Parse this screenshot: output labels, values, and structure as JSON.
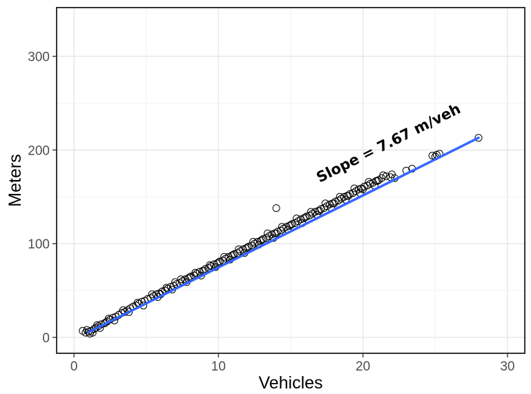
{
  "chart_data": {
    "type": "scatter",
    "title": "",
    "xlabel": "Vehicles",
    "ylabel": "Meters",
    "xlim": [
      -1.2,
      31.2
    ],
    "ylim": [
      -17,
      352
    ],
    "x_ticks": [
      0,
      10,
      20,
      30
    ],
    "y_ticks": [
      0,
      100,
      200,
      300
    ],
    "x_tick_labels": [
      "0",
      "10",
      "20",
      "30"
    ],
    "y_tick_labels": [
      "0",
      "100",
      "200",
      "300"
    ],
    "x_minor": [
      5,
      15,
      25
    ],
    "y_minor": [
      50,
      150,
      250
    ],
    "grid": true,
    "trend": {
      "slope": 7.67,
      "x_start": 1.0,
      "x_end": 28.0,
      "y_start": 5.5,
      "y_end": 213,
      "color": "#3366FF",
      "label": "Slope = 7.67 m/veh",
      "label_x": 17.0,
      "label_y": 165
    },
    "points": [
      [
        0.6,
        7
      ],
      [
        0.8,
        5
      ],
      [
        0.9,
        8
      ],
      [
        1.0,
        6
      ],
      [
        1.1,
        4
      ],
      [
        1.2,
        7
      ],
      [
        1.3,
        5
      ],
      [
        1.4,
        9
      ],
      [
        1.5,
        10
      ],
      [
        1.7,
        12
      ],
      [
        1.9,
        14
      ],
      [
        2.1,
        15
      ],
      [
        2.3,
        17
      ],
      [
        2.5,
        19
      ],
      [
        2.7,
        21
      ],
      [
        2.9,
        22
      ],
      [
        3.1,
        24
      ],
      [
        3.3,
        26
      ],
      [
        3.5,
        27
      ],
      [
        3.7,
        29
      ],
      [
        3.9,
        31
      ],
      [
        4.1,
        33
      ],
      [
        4.3,
        34
      ],
      [
        4.5,
        36
      ],
      [
        4.7,
        38
      ],
      [
        4.9,
        39
      ],
      [
        5.1,
        41
      ],
      [
        5.3,
        42
      ],
      [
        5.5,
        44
      ],
      [
        5.7,
        46
      ],
      [
        5.9,
        47
      ],
      [
        6.1,
        49
      ],
      [
        6.3,
        50
      ],
      [
        6.5,
        52
      ],
      [
        6.7,
        54
      ],
      [
        6.9,
        55
      ],
      [
        7.1,
        57
      ],
      [
        7.3,
        58
      ],
      [
        7.5,
        60
      ],
      [
        7.7,
        62
      ],
      [
        7.9,
        63
      ],
      [
        8.1,
        65
      ],
      [
        8.3,
        66
      ],
      [
        8.5,
        68
      ],
      [
        8.7,
        70
      ],
      [
        8.9,
        71
      ],
      [
        9.1,
        73
      ],
      [
        9.3,
        74
      ],
      [
        9.5,
        76
      ],
      [
        9.7,
        78
      ],
      [
        9.9,
        79
      ],
      [
        10.1,
        81
      ],
      [
        10.3,
        82
      ],
      [
        10.5,
        84
      ],
      [
        10.7,
        86
      ],
      [
        10.9,
        87
      ],
      [
        11.1,
        89
      ],
      [
        11.3,
        90
      ],
      [
        11.5,
        92
      ],
      [
        11.7,
        94
      ],
      [
        11.9,
        95
      ],
      [
        12.1,
        97
      ],
      [
        12.3,
        98
      ],
      [
        12.5,
        100
      ],
      [
        12.7,
        102
      ],
      [
        12.9,
        103
      ],
      [
        13.1,
        105
      ],
      [
        13.3,
        106
      ],
      [
        13.5,
        108
      ],
      [
        13.7,
        110
      ],
      [
        13.9,
        111
      ],
      [
        14.1,
        113
      ],
      [
        14.3,
        114
      ],
      [
        14.5,
        116
      ],
      [
        14.7,
        118
      ],
      [
        14.9,
        119
      ],
      [
        15.1,
        121
      ],
      [
        15.3,
        122
      ],
      [
        15.5,
        124
      ],
      [
        15.7,
        126
      ],
      [
        15.9,
        127
      ],
      [
        16.1,
        129
      ],
      [
        16.3,
        130
      ],
      [
        16.5,
        132
      ],
      [
        16.7,
        134
      ],
      [
        16.9,
        135
      ],
      [
        17.1,
        137
      ],
      [
        17.3,
        138
      ],
      [
        17.5,
        140
      ],
      [
        17.7,
        142
      ],
      [
        17.9,
        143
      ],
      [
        18.1,
        145
      ],
      [
        18.3,
        146
      ],
      [
        18.5,
        148
      ],
      [
        18.7,
        150
      ],
      [
        18.9,
        151
      ],
      [
        19.1,
        153
      ],
      [
        19.3,
        154
      ],
      [
        19.5,
        156
      ],
      [
        19.7,
        158
      ],
      [
        19.9,
        159
      ],
      [
        20.1,
        161
      ],
      [
        20.3,
        162
      ],
      [
        20.5,
        164
      ],
      [
        20.7,
        165
      ],
      [
        20.9,
        167
      ],
      [
        21.1,
        168
      ],
      [
        21.3,
        170
      ],
      [
        21.6,
        172
      ],
      [
        21.9,
        171
      ],
      [
        22.2,
        170
      ],
      [
        1.6,
        13
      ],
      [
        2.4,
        20
      ],
      [
        3.4,
        29
      ],
      [
        4.4,
        37
      ],
      [
        5.4,
        46
      ],
      [
        6.4,
        53
      ],
      [
        7.4,
        62
      ],
      [
        8.4,
        69
      ],
      [
        9.4,
        77
      ],
      [
        10.4,
        86
      ],
      [
        11.4,
        94
      ],
      [
        12.4,
        102
      ],
      [
        13.4,
        111
      ],
      [
        14.4,
        118
      ],
      [
        15.4,
        127
      ],
      [
        16.4,
        134
      ],
      [
        17.4,
        143
      ],
      [
        18.4,
        150
      ],
      [
        19.4,
        159
      ],
      [
        20.4,
        166
      ],
      [
        21.4,
        173
      ],
      [
        1.8,
        10
      ],
      [
        2.8,
        18
      ],
      [
        3.8,
        27
      ],
      [
        4.8,
        34
      ],
      [
        5.8,
        43
      ],
      [
        6.8,
        51
      ],
      [
        7.8,
        59
      ],
      [
        8.8,
        66
      ],
      [
        9.8,
        75
      ],
      [
        10.8,
        83
      ],
      [
        11.8,
        90
      ],
      [
        12.8,
        99
      ],
      [
        13.8,
        106
      ],
      [
        14.8,
        115
      ],
      [
        15.8,
        122
      ],
      [
        16.8,
        131
      ],
      [
        17.8,
        138
      ],
      [
        18.8,
        147
      ],
      [
        19.8,
        154
      ],
      [
        20.8,
        162
      ],
      [
        2.2,
        16
      ],
      [
        6.0,
        46
      ],
      [
        7.0,
        59
      ],
      [
        8.0,
        64
      ],
      [
        9.0,
        71
      ],
      [
        10.0,
        80
      ],
      [
        11.0,
        88
      ],
      [
        12.0,
        96
      ],
      [
        13.0,
        104
      ],
      [
        14.0,
        111
      ],
      [
        15.0,
        120
      ],
      [
        16.0,
        128
      ],
      [
        17.0,
        135
      ],
      [
        18.0,
        143
      ],
      [
        19.0,
        151
      ],
      [
        20.0,
        158
      ],
      [
        21.0,
        167
      ],
      [
        22.0,
        174
      ],
      [
        14.0,
        138
      ],
      [
        23.0,
        178
      ],
      [
        23.4,
        180
      ],
      [
        24.8,
        194
      ],
      [
        25.1,
        195
      ],
      [
        25.3,
        196
      ],
      [
        25.0,
        193
      ],
      [
        28.0,
        213
      ]
    ]
  }
}
